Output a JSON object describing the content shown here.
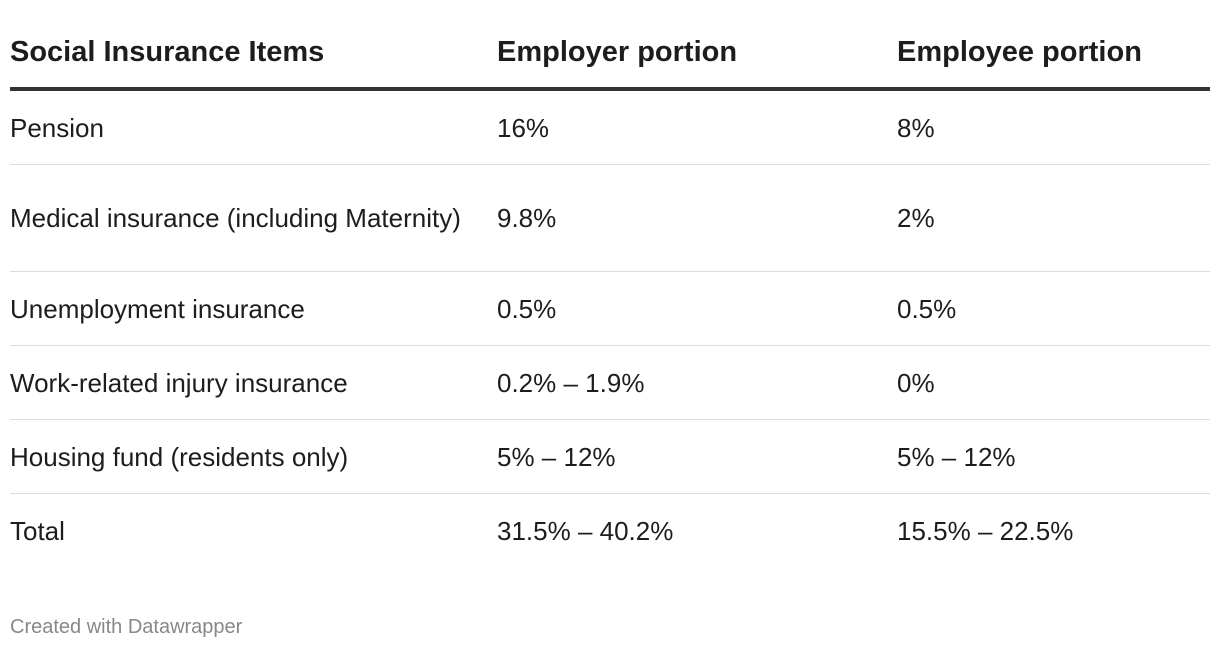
{
  "chart_data": {
    "type": "table",
    "columns": [
      "Social Insurance Items",
      "Employer portion",
      "Employee portion"
    ],
    "rows": [
      [
        "Pension",
        "16%",
        "8%"
      ],
      [
        "Medical insurance (including Maternity)",
        "9.8%",
        "2%"
      ],
      [
        "Unemployment insurance",
        "0.5%",
        "0.5%"
      ],
      [
        "Work-related injury insurance",
        "0.2% – 1.9%",
        "0%"
      ],
      [
        "Housing fund (residents only)",
        "5% – 12%",
        "5% – 12%"
      ],
      [
        "Total",
        "31.5% – 40.2%",
        "15.5% – 22.5%"
      ]
    ]
  },
  "footer": {
    "credit": "Created with Datawrapper"
  }
}
